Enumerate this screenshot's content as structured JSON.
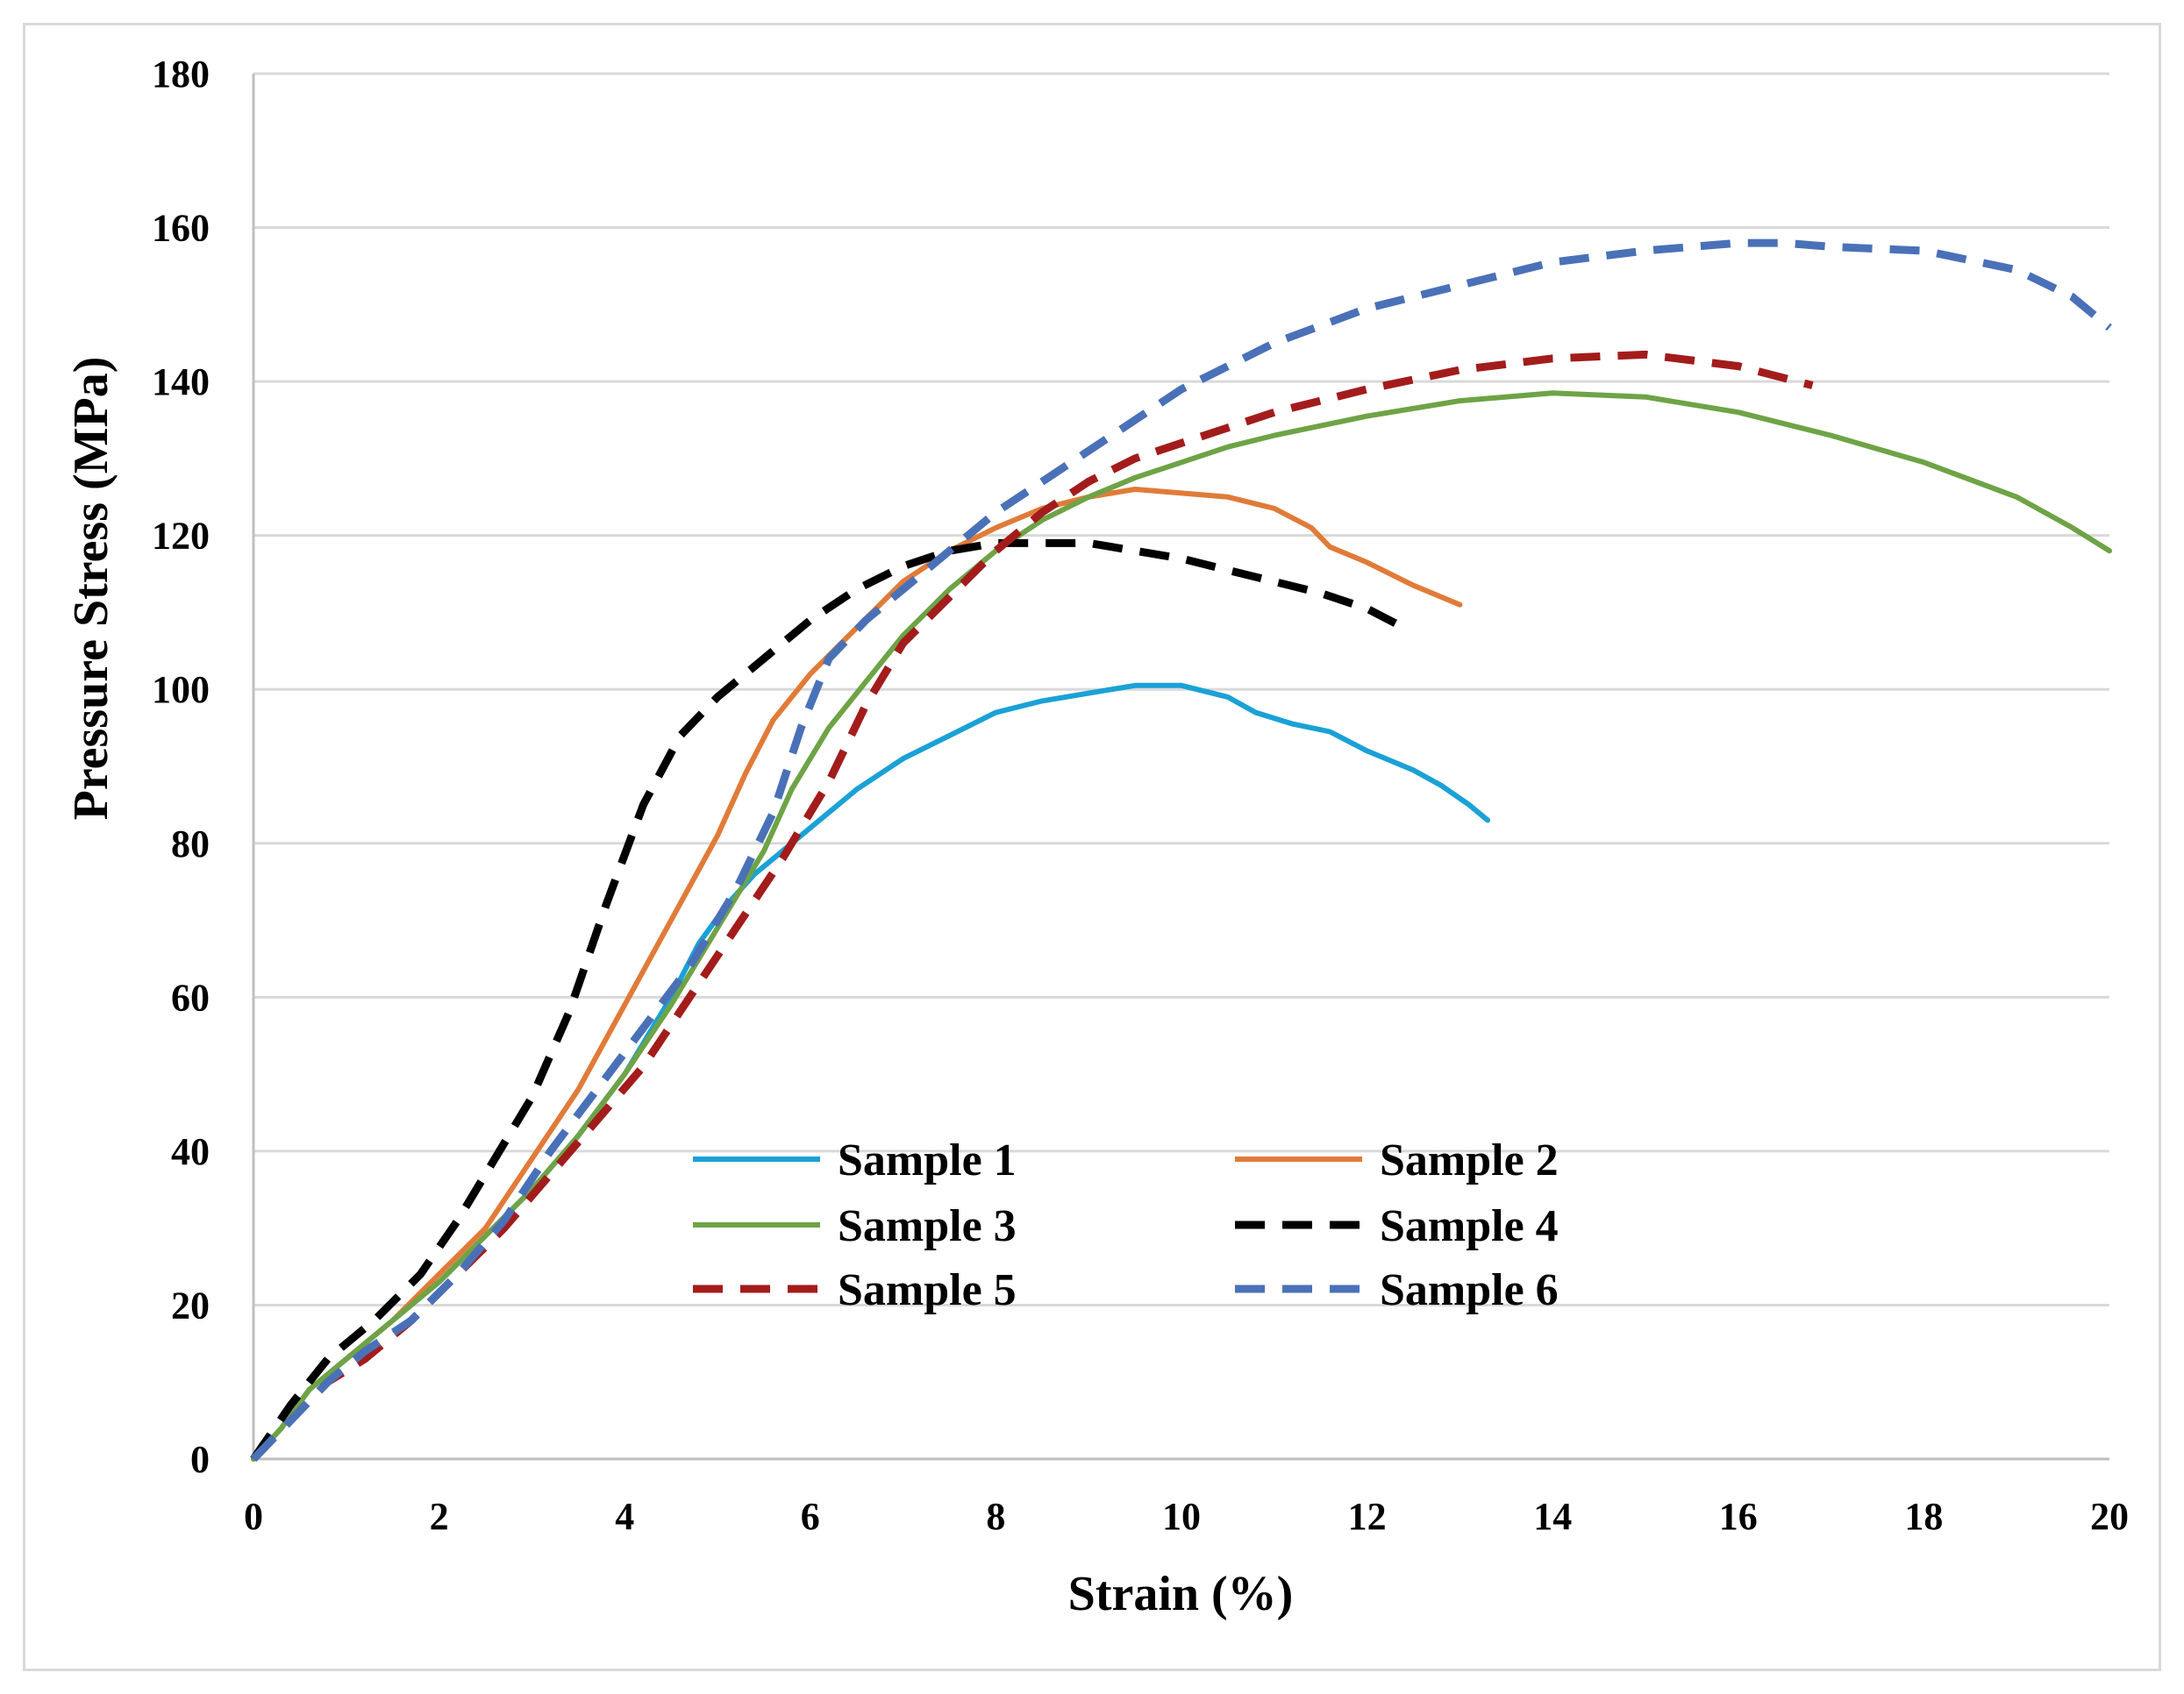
{
  "chart_data": {
    "type": "line",
    "title": "",
    "xlabel": "Strain (%)",
    "ylabel": "Pressure Stress (MPa)",
    "xlim": [
      0,
      20
    ],
    "ylim": [
      0,
      180
    ],
    "xticks": [
      0,
      2,
      4,
      6,
      8,
      10,
      12,
      14,
      16,
      18,
      20
    ],
    "yticks": [
      0,
      20,
      40,
      60,
      80,
      100,
      120,
      140,
      160,
      180
    ],
    "grid": "horizontal",
    "legend_position": "lower-center",
    "series": [
      {
        "name": "Sample 1",
        "color": "#1ba1d6",
        "dash": "solid",
        "points": [
          [
            0,
            0
          ],
          [
            0.3,
            4
          ],
          [
            0.6,
            9
          ],
          [
            1,
            13
          ],
          [
            1.5,
            18
          ],
          [
            2,
            23
          ],
          [
            2.5,
            29
          ],
          [
            3,
            35
          ],
          [
            3.5,
            42
          ],
          [
            4,
            50
          ],
          [
            4.5,
            60
          ],
          [
            4.8,
            67
          ],
          [
            5.1,
            72
          ],
          [
            5.4,
            76
          ],
          [
            5.7,
            79
          ],
          [
            6,
            82
          ],
          [
            6.5,
            87
          ],
          [
            7,
            91
          ],
          [
            7.5,
            94
          ],
          [
            8,
            97
          ],
          [
            8.5,
            98.5
          ],
          [
            9,
            99.5
          ],
          [
            9.5,
            100.5
          ],
          [
            10,
            100.5
          ],
          [
            10.5,
            99
          ],
          [
            10.8,
            97
          ],
          [
            11.2,
            95.5
          ],
          [
            11.6,
            94.5
          ],
          [
            12,
            92
          ],
          [
            12.5,
            89.5
          ],
          [
            12.8,
            87.5
          ],
          [
            13.1,
            85
          ],
          [
            13.3,
            83
          ]
        ]
      },
      {
        "name": "Sample 2",
        "color": "#e07b39",
        "dash": "solid",
        "points": [
          [
            0,
            0
          ],
          [
            0.3,
            4
          ],
          [
            0.6,
            9
          ],
          [
            1,
            13
          ],
          [
            1.5,
            18
          ],
          [
            2,
            24
          ],
          [
            2.5,
            30
          ],
          [
            3,
            39
          ],
          [
            3.5,
            48
          ],
          [
            4,
            59
          ],
          [
            4.5,
            70
          ],
          [
            5,
            81
          ],
          [
            5.3,
            89
          ],
          [
            5.6,
            96
          ],
          [
            6,
            102
          ],
          [
            6.5,
            108
          ],
          [
            7,
            114
          ],
          [
            7.5,
            118
          ],
          [
            8,
            121
          ],
          [
            8.5,
            123.5
          ],
          [
            9,
            125
          ],
          [
            9.5,
            126
          ],
          [
            10,
            125.5
          ],
          [
            10.5,
            125
          ],
          [
            11,
            123.5
          ],
          [
            11.4,
            121
          ],
          [
            11.6,
            118.5
          ],
          [
            12,
            116.5
          ],
          [
            12.5,
            113.5
          ],
          [
            13,
            111
          ]
        ]
      },
      {
        "name": "Sample 3",
        "color": "#6ea346",
        "dash": "solid",
        "points": [
          [
            0,
            0
          ],
          [
            0.3,
            4
          ],
          [
            0.6,
            9
          ],
          [
            1,
            13
          ],
          [
            1.5,
            18
          ],
          [
            2,
            23
          ],
          [
            2.5,
            29
          ],
          [
            3,
            35
          ],
          [
            3.5,
            42
          ],
          [
            4,
            50
          ],
          [
            4.5,
            59
          ],
          [
            5,
            69
          ],
          [
            5.5,
            79
          ],
          [
            5.8,
            87
          ],
          [
            6.2,
            95
          ],
          [
            6.6,
            101
          ],
          [
            7,
            107
          ],
          [
            7.5,
            113
          ],
          [
            8,
            118
          ],
          [
            8.5,
            122
          ],
          [
            9,
            125
          ],
          [
            9.5,
            127.5
          ],
          [
            10,
            129.5
          ],
          [
            10.5,
            131.5
          ],
          [
            11,
            133
          ],
          [
            12,
            135.5
          ],
          [
            13,
            137.5
          ],
          [
            14,
            138.5
          ],
          [
            15,
            138
          ],
          [
            16,
            136
          ],
          [
            17,
            133
          ],
          [
            18,
            129.5
          ],
          [
            19,
            125
          ],
          [
            19.6,
            121
          ],
          [
            20,
            118
          ]
        ]
      },
      {
        "name": "Sample 4",
        "color": "#000000",
        "dash": "dashed",
        "points": [
          [
            0,
            0
          ],
          [
            0.4,
            7
          ],
          [
            0.8,
            13
          ],
          [
            1.3,
            18
          ],
          [
            1.8,
            24
          ],
          [
            2.2,
            31
          ],
          [
            2.6,
            39
          ],
          [
            3,
            47
          ],
          [
            3.4,
            58
          ],
          [
            3.8,
            72
          ],
          [
            4.2,
            85
          ],
          [
            4.6,
            94
          ],
          [
            5,
            99
          ],
          [
            5.5,
            104
          ],
          [
            6,
            109
          ],
          [
            6.5,
            113
          ],
          [
            7,
            116
          ],
          [
            7.5,
            118
          ],
          [
            8,
            119
          ],
          [
            8.5,
            119
          ],
          [
            9,
            119
          ],
          [
            9.5,
            118
          ],
          [
            10,
            117
          ],
          [
            10.5,
            115.5
          ],
          [
            11,
            114
          ],
          [
            11.5,
            112.5
          ],
          [
            12,
            110.5
          ],
          [
            12.4,
            108
          ]
        ]
      },
      {
        "name": "Sample 5",
        "color": "#a31c1c",
        "dash": "dashed",
        "points": [
          [
            0,
            0
          ],
          [
            0.4,
            5
          ],
          [
            0.8,
            10
          ],
          [
            1.2,
            13
          ],
          [
            1.7,
            18
          ],
          [
            2.2,
            24
          ],
          [
            2.7,
            30
          ],
          [
            3.2,
            37
          ],
          [
            3.7,
            44
          ],
          [
            4.2,
            51
          ],
          [
            4.7,
            60
          ],
          [
            5.2,
            69
          ],
          [
            5.7,
            78
          ],
          [
            6.2,
            88
          ],
          [
            6.6,
            98
          ],
          [
            7,
            106
          ],
          [
            7.5,
            112
          ],
          [
            8,
            118
          ],
          [
            8.5,
            123
          ],
          [
            9,
            127
          ],
          [
            9.5,
            130
          ],
          [
            10,
            132
          ],
          [
            10.5,
            134
          ],
          [
            11,
            136
          ],
          [
            12,
            139
          ],
          [
            13,
            141.5
          ],
          [
            14,
            143
          ],
          [
            15,
            143.5
          ],
          [
            16,
            142
          ],
          [
            16.8,
            139.5
          ]
        ]
      },
      {
        "name": "Sample 6",
        "color": "#4a71b8",
        "dash": "dashed",
        "points": [
          [
            0,
            0
          ],
          [
            0.4,
            5
          ],
          [
            0.8,
            10
          ],
          [
            1.2,
            14
          ],
          [
            1.7,
            18
          ],
          [
            2.2,
            24
          ],
          [
            2.7,
            31
          ],
          [
            3.2,
            40
          ],
          [
            3.7,
            48
          ],
          [
            4.2,
            56
          ],
          [
            4.7,
            64
          ],
          [
            5.2,
            74
          ],
          [
            5.6,
            84
          ],
          [
            5.9,
            95
          ],
          [
            6.2,
            104
          ],
          [
            6.6,
            109
          ],
          [
            7,
            113
          ],
          [
            7.5,
            118
          ],
          [
            8,
            123
          ],
          [
            8.5,
            127
          ],
          [
            9,
            131
          ],
          [
            9.5,
            135
          ],
          [
            10,
            139
          ],
          [
            10.5,
            142
          ],
          [
            11,
            145
          ],
          [
            12,
            149.5
          ],
          [
            13,
            152.5
          ],
          [
            14,
            155.5
          ],
          [
            15,
            157
          ],
          [
            16,
            158
          ],
          [
            16.5,
            158
          ],
          [
            17,
            157.5
          ],
          [
            18,
            157
          ],
          [
            19,
            154.5
          ],
          [
            19.6,
            151
          ],
          [
            20,
            147
          ]
        ]
      }
    ]
  }
}
